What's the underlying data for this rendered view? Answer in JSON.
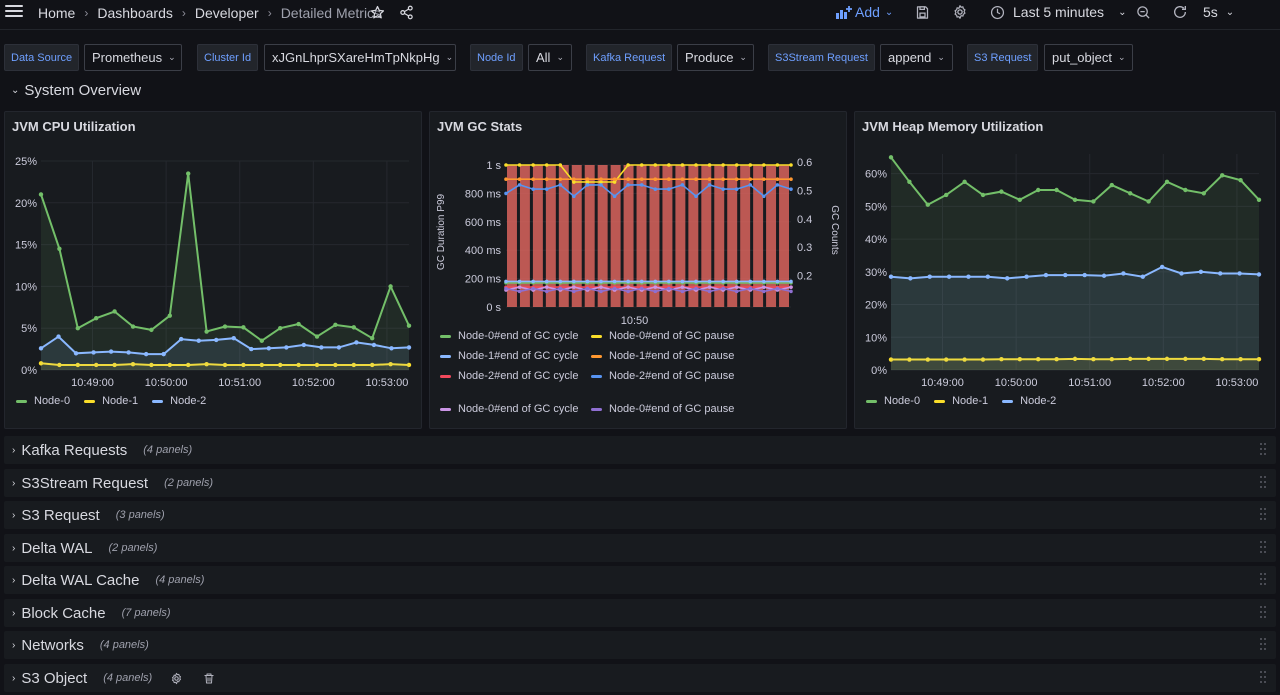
{
  "breadcrumb": [
    "Home",
    "Dashboards",
    "Developer",
    "Detailed Metrics"
  ],
  "toolbar": {
    "add_label": "Add",
    "time_range": "Last 5 minutes",
    "refresh_interval": "5s"
  },
  "variables": [
    {
      "label": "Data Source",
      "value": "Prometheus"
    },
    {
      "label": "Cluster Id",
      "value": "xJGnLhprSXareHmTpNkpHg"
    },
    {
      "label": "Node Id",
      "value": "All"
    },
    {
      "label": "Kafka Request",
      "value": "Produce"
    },
    {
      "label": "S3Stream Request",
      "value": "append"
    },
    {
      "label": "S3 Request",
      "value": "put_object"
    }
  ],
  "section": {
    "title": "System Overview"
  },
  "colors": {
    "green": "#73bf69",
    "yellow": "#fade2a",
    "blue": "#8ab8ff",
    "red": "#f2495c",
    "orange": "#ff9830",
    "purple": "#ca95e5",
    "violet": "#8f6fd1",
    "accent": "#6e9fff"
  },
  "panels": {
    "cpu": {
      "title": "JVM CPU Utilization",
      "legend": [
        "Node-0",
        "Node-1",
        "Node-2"
      ]
    },
    "gc": {
      "title": "JVM GC Stats",
      "legend": [
        "Node-0#end of GC cycle",
        "Node-0#end of GC pause",
        "Node-1#end of GC cycle",
        "Node-1#end of GC pause",
        "Node-2#end of GC cycle",
        "Node-2#end of GC pause",
        "Node-0#end of GC cycle",
        "Node-0#end of GC pause"
      ]
    },
    "heap": {
      "title": "JVM Heap Memory Utilization",
      "legend": [
        "Node-0",
        "Node-1",
        "Node-2"
      ]
    }
  },
  "chart_data": [
    {
      "type": "line",
      "title": "JVM CPU Utilization",
      "x_ticks": [
        "10:49:00",
        "10:50:00",
        "10:51:00",
        "10:52:00",
        "10:53:00"
      ],
      "y_ticks": [
        "0%",
        "5%",
        "10%",
        "15%",
        "20%",
        "25%"
      ],
      "ylim": [
        0,
        25
      ],
      "series": [
        {
          "name": "Node-0",
          "color": "#73bf69",
          "values": [
            21,
            14.5,
            5,
            6.2,
            7,
            5.2,
            4.8,
            6.5,
            23.5,
            4.6,
            5.2,
            5.1,
            3.5,
            5,
            5.5,
            4,
            5.4,
            5.1,
            3.8,
            10,
            5.3
          ]
        },
        {
          "name": "Node-1",
          "color": "#fade2a",
          "values": [
            0.8,
            0.6,
            0.6,
            0.6,
            0.6,
            0.7,
            0.6,
            0.6,
            0.6,
            0.7,
            0.6,
            0.6,
            0.6,
            0.6,
            0.6,
            0.6,
            0.6,
            0.6,
            0.6,
            0.7,
            0.6
          ]
        },
        {
          "name": "Node-2",
          "color": "#8ab8ff",
          "values": [
            2.6,
            4,
            2,
            2.1,
            2.2,
            2.1,
            1.9,
            1.9,
            3.7,
            3.5,
            3.6,
            3.8,
            2.5,
            2.6,
            2.7,
            3,
            2.7,
            2.7,
            3.3,
            3,
            2.6,
            2.7
          ]
        }
      ]
    },
    {
      "type": "bar",
      "title": "JVM GC Stats",
      "xlabel": "",
      "ylabel": "GC Duration P99",
      "y2label": "GC Counts",
      "x_ticks": [
        "10:50"
      ],
      "y_ticks": [
        "0 s",
        "200 ms",
        "400 ms",
        "600 ms",
        "800 ms",
        "1 s"
      ],
      "y2_ticks": [
        "0.2",
        "0.3",
        "0.4",
        "0.5",
        "0.6"
      ],
      "ylim": [
        0,
        1
      ],
      "y2lim": [
        0.1,
        0.6
      ],
      "bar_values": [
        1,
        1,
        1,
        1,
        1,
        1,
        1,
        1,
        1,
        1,
        1,
        1,
        1,
        1,
        1,
        1,
        1,
        1,
        1,
        1,
        1,
        1
      ],
      "series": [
        {
          "name": "Node-0#end of GC pause",
          "color": "#fade2a",
          "axis": "left",
          "values": [
            1,
            1,
            1,
            1,
            1,
            0.88,
            0.88,
            0.88,
            0.88,
            1,
            1,
            1,
            1,
            1,
            1,
            1,
            1,
            1,
            1,
            1,
            1,
            1
          ]
        },
        {
          "name": "Node-1#end of GC pause",
          "color": "#ff9830",
          "axis": "left",
          "values": [
            0.9,
            0.9,
            0.9,
            0.9,
            0.9,
            0.9,
            0.9,
            0.9,
            0.9,
            0.9,
            0.9,
            0.9,
            0.9,
            0.9,
            0.9,
            0.9,
            0.9,
            0.9,
            0.9,
            0.9,
            0.9,
            0.9
          ]
        },
        {
          "name": "Node-2#end of GC pause",
          "color": "#5794f2",
          "axis": "left",
          "values": [
            0.8,
            0.86,
            0.83,
            0.83,
            0.86,
            0.78,
            0.86,
            0.86,
            0.78,
            0.86,
            0.86,
            0.83,
            0.83,
            0.86,
            0.78,
            0.86,
            0.83,
            0.83,
            0.86,
            0.78,
            0.86,
            0.83
          ]
        },
        {
          "name": "Node-0#end of GC cycle",
          "color": "#73bf69",
          "axis": "left",
          "values": [
            0.17,
            0.17,
            0.17,
            0.17,
            0.17,
            0.17,
            0.17,
            0.17,
            0.17,
            0.17,
            0.17,
            0.17,
            0.17,
            0.17,
            0.17,
            0.17,
            0.17,
            0.17,
            0.17,
            0.17,
            0.17,
            0.17
          ]
        },
        {
          "name": "Node-1#end of GC cycle",
          "color": "#8ab8ff",
          "axis": "left",
          "values": [
            0.18,
            0.18,
            0.18,
            0.18,
            0.18,
            0.18,
            0.18,
            0.18,
            0.18,
            0.18,
            0.18,
            0.18,
            0.18,
            0.18,
            0.18,
            0.18,
            0.18,
            0.18,
            0.18,
            0.18,
            0.18,
            0.18
          ]
        },
        {
          "name": "Node-2#end of GC cycle",
          "color": "#f2495c",
          "axis": "left",
          "values": [
            0.14,
            0.14,
            0.14,
            0.14,
            0.14,
            0.14,
            0.14,
            0.14,
            0.14,
            0.14,
            0.14,
            0.14,
            0.14,
            0.14,
            0.14,
            0.14,
            0.14,
            0.14,
            0.14,
            0.14,
            0.14,
            0.14
          ]
        },
        {
          "name": "Node-0#end of GC cycle",
          "color": "#ca95e5",
          "axis": "left",
          "values": [
            0.12,
            0.14,
            0.12,
            0.14,
            0.12,
            0.14,
            0.12,
            0.14,
            0.12,
            0.14,
            0.12,
            0.14,
            0.12,
            0.14,
            0.12,
            0.14,
            0.12,
            0.14,
            0.12,
            0.14,
            0.12,
            0.14
          ]
        },
        {
          "name": "Node-0#end of GC pause",
          "color": "#8f6fd1",
          "axis": "left",
          "values": [
            0.13,
            0.11,
            0.13,
            0.11,
            0.13,
            0.11,
            0.13,
            0.11,
            0.13,
            0.11,
            0.13,
            0.11,
            0.13,
            0.11,
            0.13,
            0.11,
            0.13,
            0.11,
            0.13,
            0.11,
            0.13,
            0.11
          ]
        }
      ]
    },
    {
      "type": "line",
      "title": "JVM Heap Memory Utilization",
      "x_ticks": [
        "10:49:00",
        "10:50:00",
        "10:51:00",
        "10:52:00",
        "10:53:00"
      ],
      "y_ticks": [
        "0%",
        "10%",
        "20%",
        "30%",
        "40%",
        "50%",
        "60%"
      ],
      "ylim": [
        0,
        66
      ],
      "series": [
        {
          "name": "Node-0",
          "color": "#73bf69",
          "values": [
            65,
            57.5,
            50.5,
            53.5,
            57.5,
            53.5,
            54.5,
            52,
            55,
            55,
            52,
            51.5,
            56.5,
            54,
            51.5,
            57.5,
            55,
            54,
            59.5,
            58,
            52
          ]
        },
        {
          "name": "Node-1",
          "color": "#fade2a",
          "values": [
            3.2,
            3.2,
            3.2,
            3.2,
            3.2,
            3.2,
            3.3,
            3.3,
            3.3,
            3.3,
            3.4,
            3.3,
            3.3,
            3.4,
            3.4,
            3.4,
            3.4,
            3.4,
            3.3,
            3.3,
            3.3
          ]
        },
        {
          "name": "Node-2",
          "color": "#8ab8ff",
          "values": [
            28.5,
            28,
            28.5,
            28.5,
            28.5,
            28.5,
            28,
            28.5,
            29,
            29,
            29,
            28.8,
            29.5,
            28.5,
            31.5,
            29.5,
            30,
            29.5,
            29.5,
            29.2
          ]
        }
      ]
    }
  ],
  "collapsed_rows": [
    {
      "title": "Kafka Requests",
      "count": "(4 panels)"
    },
    {
      "title": "S3Stream Request",
      "count": "(2 panels)"
    },
    {
      "title": "S3 Request",
      "count": "(3 panels)"
    },
    {
      "title": "Delta WAL",
      "count": "(2 panels)"
    },
    {
      "title": "Delta WAL Cache",
      "count": "(4 panels)"
    },
    {
      "title": "Block Cache",
      "count": "(7 panels)"
    },
    {
      "title": "Networks",
      "count": "(4 panels)"
    },
    {
      "title": "S3 Object",
      "count": "(4 panels)"
    }
  ]
}
